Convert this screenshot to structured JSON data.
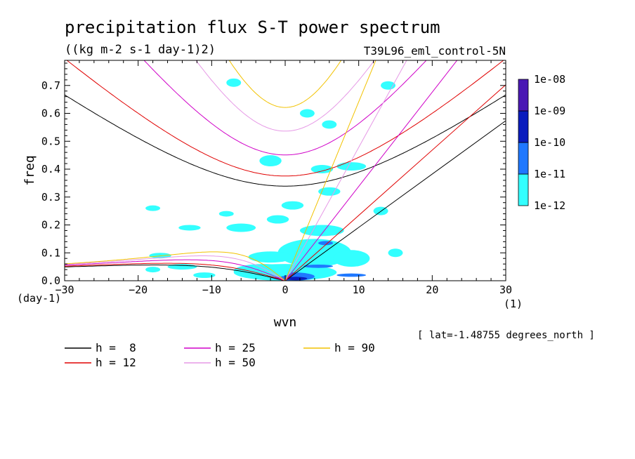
{
  "chart_data": {
    "type": "heatmap",
    "title": "precipitation flux S-T power spectrum",
    "subtitle": "((kg m-2 s-1 day-1)2)",
    "run_label": "T39L96_eml_control-5N",
    "xlabel": "wvn",
    "ylabel": "freq",
    "x_unit": "(1)",
    "y_unit": "(day-1)",
    "lat_note": "[ lat=-1.48755 degrees_north ]",
    "xlim": [
      -30,
      30
    ],
    "ylim": [
      0,
      0.79
    ],
    "x_ticks": [
      -30,
      -20,
      -10,
      0,
      10,
      20,
      30
    ],
    "y_ticks": [
      0.0,
      0.1,
      0.2,
      0.3,
      0.4,
      0.5,
      0.6,
      0.7
    ],
    "y_tick_labels": [
      "0.0",
      "0.1",
      "0.2",
      "0.3",
      "0.4",
      "0.5",
      "0.6",
      "0.7"
    ],
    "colorbar": {
      "levels": [
        "1e-12",
        "1e-11",
        "1e-10",
        "1e-09",
        "1e-08"
      ],
      "colors": [
        "#33ffff",
        "#1f78ff",
        "#0a1cbe",
        "#4a18b4"
      ]
    },
    "dispersion_legend": [
      {
        "label": "h =  8",
        "h": 8,
        "color": "#000000"
      },
      {
        "label": "h = 12",
        "h": 12,
        "color": "#e00000"
      },
      {
        "label": "h = 25",
        "h": 25,
        "color": "#d000c8"
      },
      {
        "label": "h = 50",
        "h": 50,
        "color": "#e699e6"
      },
      {
        "label": "h = 90",
        "h": 90,
        "color": "#f2c200"
      }
    ],
    "spectral_patches": [
      {
        "x": 0,
        "y": 0.03,
        "w": 14,
        "h": 0.06,
        "level": 0
      },
      {
        "x": 1,
        "y": 0.015,
        "w": 6,
        "h": 0.03,
        "level": 1
      },
      {
        "x": 1.5,
        "y": 0.008,
        "w": 3,
        "h": 0.012,
        "level": 2
      },
      {
        "x": -3,
        "y": 0.035,
        "w": 8,
        "h": 0.05,
        "level": 0
      },
      {
        "x": 4,
        "y": 0.1,
        "w": 10,
        "h": 0.1,
        "level": 0
      },
      {
        "x": -2,
        "y": 0.085,
        "w": 6,
        "h": 0.04,
        "level": 0
      },
      {
        "x": 9,
        "y": 0.08,
        "w": 5,
        "h": 0.06,
        "level": 0
      },
      {
        "x": 5,
        "y": 0.18,
        "w": 6,
        "h": 0.04,
        "level": 0
      },
      {
        "x": 5.5,
        "y": 0.135,
        "w": 2,
        "h": 0.015,
        "level": 1
      },
      {
        "x": 4.5,
        "y": 0.052,
        "w": 4,
        "h": 0.012,
        "level": 1
      },
      {
        "x": 9,
        "y": 0.02,
        "w": 4,
        "h": 0.012,
        "level": 1
      },
      {
        "x": -14,
        "y": 0.05,
        "w": 4,
        "h": 0.02,
        "level": 0
      },
      {
        "x": -11,
        "y": 0.02,
        "w": 3,
        "h": 0.02,
        "level": 0
      },
      {
        "x": -17,
        "y": 0.09,
        "w": 3,
        "h": 0.02,
        "level": 0
      },
      {
        "x": -6,
        "y": 0.19,
        "w": 4,
        "h": 0.03,
        "level": 0
      },
      {
        "x": -13,
        "y": 0.19,
        "w": 3,
        "h": 0.02,
        "level": 0
      },
      {
        "x": -1,
        "y": 0.22,
        "w": 3,
        "h": 0.03,
        "level": 0
      },
      {
        "x": 1,
        "y": 0.27,
        "w": 3,
        "h": 0.03,
        "level": 0
      },
      {
        "x": -8,
        "y": 0.24,
        "w": 2,
        "h": 0.02,
        "level": 0
      },
      {
        "x": -18,
        "y": 0.26,
        "w": 2,
        "h": 0.02,
        "level": 0
      },
      {
        "x": -2,
        "y": 0.43,
        "w": 3,
        "h": 0.04,
        "level": 0
      },
      {
        "x": 5,
        "y": 0.4,
        "w": 3,
        "h": 0.03,
        "level": 0
      },
      {
        "x": 9,
        "y": 0.41,
        "w": 4,
        "h": 0.03,
        "level": 0
      },
      {
        "x": 6,
        "y": 0.32,
        "w": 3,
        "h": 0.03,
        "level": 0
      },
      {
        "x": 13,
        "y": 0.25,
        "w": 2,
        "h": 0.03,
        "level": 0
      },
      {
        "x": 3,
        "y": 0.6,
        "w": 2,
        "h": 0.03,
        "level": 0
      },
      {
        "x": 6,
        "y": 0.56,
        "w": 2,
        "h": 0.03,
        "level": 0
      },
      {
        "x": 14,
        "y": 0.7,
        "w": 2,
        "h": 0.03,
        "level": 0
      },
      {
        "x": -7,
        "y": 0.71,
        "w": 2,
        "h": 0.03,
        "level": 0
      },
      {
        "x": 15,
        "y": 0.1,
        "w": 2,
        "h": 0.03,
        "level": 0
      },
      {
        "x": -18,
        "y": 0.04,
        "w": 2,
        "h": 0.02,
        "level": 0
      }
    ]
  }
}
